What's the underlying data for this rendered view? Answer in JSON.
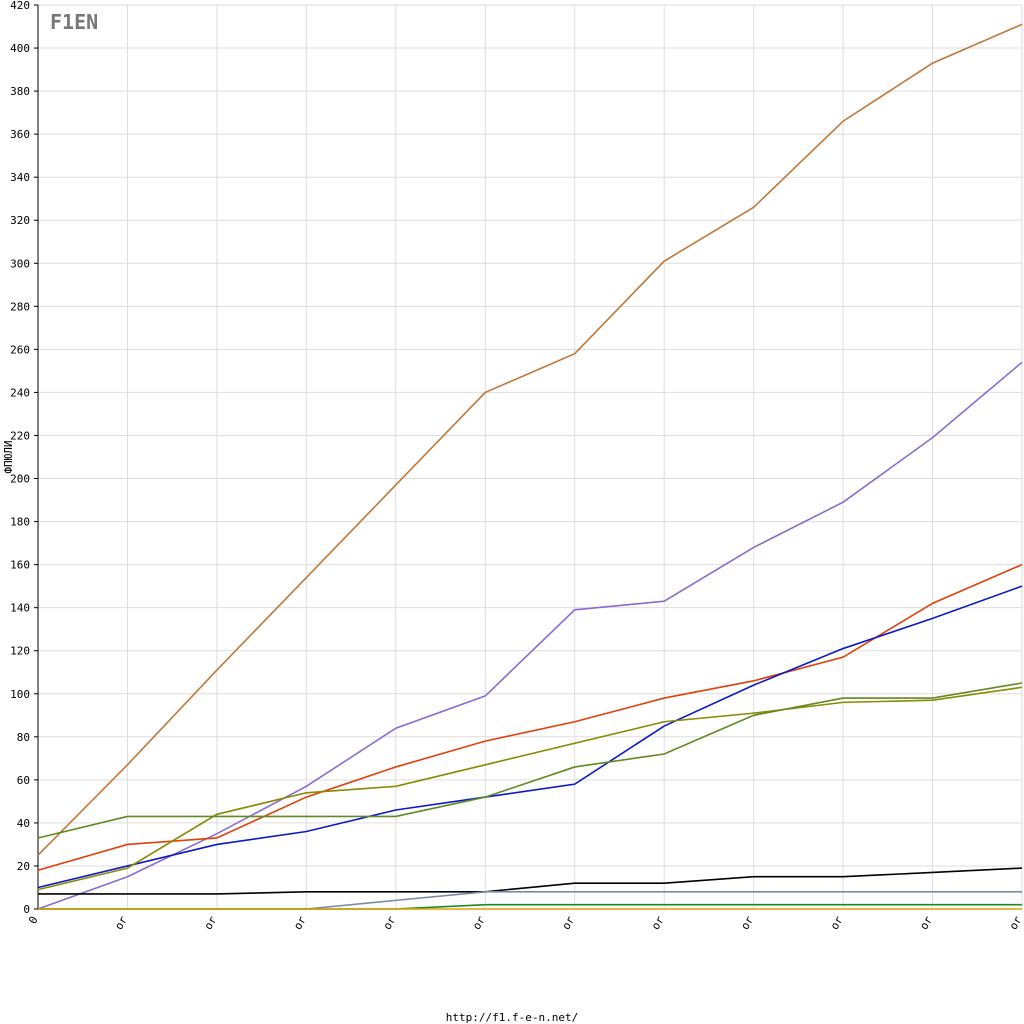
{
  "chart_data": {
    "type": "line",
    "y_label": "ФПЮЛИ",
    "footer": "http://f1.f-e-n.net/",
    "logo": "F1EN",
    "categories": [
      "0",
      "or",
      "or",
      "or",
      "or",
      "or",
      "or",
      "or",
      "or",
      "or",
      "or",
      "or"
    ],
    "ylim": [
      0,
      420
    ],
    "yticks": [
      0,
      20,
      40,
      60,
      80,
      100,
      120,
      140,
      160,
      180,
      200,
      220,
      240,
      260,
      280,
      300,
      320,
      340,
      360,
      380,
      400,
      420
    ],
    "grid": true,
    "series": [
      {
        "color": "#c0783a",
        "values": [
          25,
          67,
          111,
          154,
          197,
          240,
          258,
          301,
          326,
          366,
          393,
          411
        ]
      },
      {
        "color": "#8a6ccf",
        "values": [
          0,
          15,
          35,
          57,
          84,
          99,
          139,
          143,
          168,
          189,
          219,
          254
        ]
      },
      {
        "color": "#e0400a",
        "values": [
          18,
          30,
          33,
          52,
          66,
          78,
          87,
          98,
          106,
          117,
          142,
          160
        ]
      },
      {
        "color": "#0a1ac8",
        "values": [
          10,
          20,
          30,
          36,
          46,
          52,
          58,
          85,
          104,
          121,
          135,
          150
        ]
      },
      {
        "color": "#8a8a00",
        "values": [
          9,
          19,
          44,
          54,
          57,
          67,
          77,
          87,
          91,
          96,
          97,
          103
        ]
      },
      {
        "color": "#5f8a20",
        "values": [
          33,
          43,
          43,
          43,
          43,
          52,
          66,
          72,
          90,
          98,
          98,
          105
        ]
      },
      {
        "color": "#000000",
        "values": [
          7,
          7,
          7,
          8,
          8,
          8,
          12,
          12,
          15,
          15,
          17,
          19
        ]
      },
      {
        "color": "#7a8aa0",
        "values": [
          0,
          0,
          0,
          0,
          4,
          8,
          8,
          8,
          8,
          8,
          8,
          8
        ]
      },
      {
        "color": "#1a8a1a",
        "values": [
          0,
          0,
          0,
          0,
          0,
          2,
          2,
          2,
          2,
          2,
          2,
          2
        ]
      },
      {
        "color": "#e0a000",
        "values": [
          0,
          0,
          0,
          0,
          0,
          0,
          0,
          0,
          0,
          0,
          0,
          0
        ]
      }
    ]
  }
}
